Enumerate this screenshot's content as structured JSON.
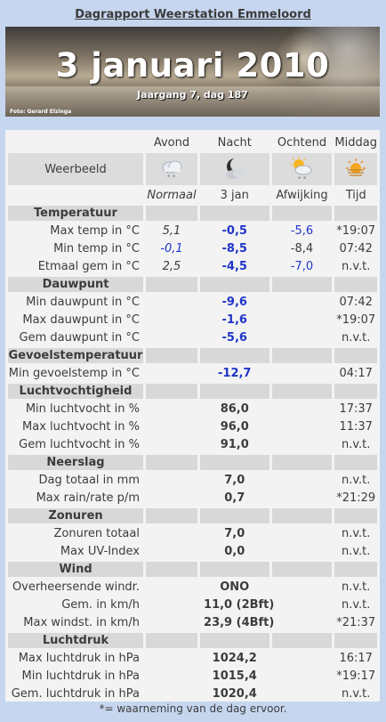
{
  "page": {
    "title": "Dagrapport Weerstation Emmeloord",
    "footnote": "*= waarneming van de dag ervoor."
  },
  "banner": {
    "date": "3 januari 2010",
    "subtitle": "Jaargang 7, dag 187",
    "photo_credit": "Foto: Gerard Elzinga"
  },
  "columns": {
    "c1": "Avond",
    "c2": "Nacht",
    "c3": "Ochtend",
    "c4": "Middag"
  },
  "icons_row": {
    "label": "Weerbeeld",
    "icons": [
      "cloud-snow-icon",
      "moon-cloud-icon",
      "sun-cloud-snow-icon",
      "sun-haze-icon"
    ]
  },
  "subheader": {
    "c1": "Normaal",
    "c2": "3 jan",
    "c3": "Afwijking",
    "c4": "Tijd"
  },
  "colors": {
    "value_blue": "#1f36c8",
    "section_bg": "#d8d8d8",
    "page_bg": "#c6d6ef"
  },
  "sections": {
    "temp": {
      "title": "Temperatuur",
      "rows": [
        {
          "label": "Max temp in °C",
          "normaal": "5,1",
          "value": "-0,5",
          "afwijking": "-5,6",
          "tijd": "*19:07"
        },
        {
          "label": "Min temp in °C",
          "normaal": "-0,1",
          "value": "-8,5",
          "afwijking": "-8,4",
          "tijd": "07:42"
        },
        {
          "label": "Etmaal gem in °C",
          "normaal": "2,5",
          "value": "-4,5",
          "afwijking": "-7,0",
          "tijd": "n.v.t."
        }
      ]
    },
    "dew": {
      "title": "Dauwpunt",
      "rows": [
        {
          "label": "Min dauwpunt in °C",
          "value": "-9,6",
          "tijd": "07:42"
        },
        {
          "label": "Max dauwpunt in °C",
          "value": "-1,6",
          "tijd": "*19:07"
        },
        {
          "label": "Gem dauwpunt in °C",
          "value": "-5,6",
          "tijd": "n.v.t."
        }
      ]
    },
    "feel": {
      "title": "Gevoelstemperatuur",
      "rows": [
        {
          "label": "Min gevoelstemp in °C",
          "value": "-12,7",
          "tijd": "04:17"
        }
      ]
    },
    "hum": {
      "title": "Luchtvochtigheid",
      "rows": [
        {
          "label": "Min luchtvocht in %",
          "value": "86,0",
          "tijd": "17:37"
        },
        {
          "label": "Max luchtvocht in %",
          "value": "96,0",
          "tijd": "11:37"
        },
        {
          "label": "Gem luchtvocht in %",
          "value": "91,0",
          "tijd": "n.v.t."
        }
      ]
    },
    "rain": {
      "title": "Neerslag",
      "rows": [
        {
          "label": "Dag totaal in mm",
          "value": "7,0",
          "tijd": "n.v.t."
        },
        {
          "label": "Max rain/rate p/m",
          "value": "0,7",
          "tijd": "*21:29"
        }
      ]
    },
    "sun": {
      "title": "Zonuren",
      "rows": [
        {
          "label": "Zonuren totaal",
          "value": "7,0",
          "tijd": "n.v.t."
        },
        {
          "label": "Max UV-Index",
          "value": "0,0",
          "tijd": "n.v.t."
        }
      ]
    },
    "wind": {
      "title": "Wind",
      "rows": [
        {
          "label": "Overheersende windr.",
          "value": "ONO",
          "tijd": "n.v.t."
        },
        {
          "label": "Gem. in km/h",
          "value": "11,0 (2Bft)",
          "tijd": "n.v.t."
        },
        {
          "label": "Max windst. in km/h",
          "value": "23,9 (4Bft)",
          "tijd": "*21:37"
        }
      ]
    },
    "press": {
      "title": "Luchtdruk",
      "rows": [
        {
          "label": "Max luchtdruk in hPa",
          "value": "1024,2",
          "tijd": "16:17"
        },
        {
          "label": "Min luchtdruk in hPa",
          "value": "1015,4",
          "tijd": "*19:17"
        },
        {
          "label": "Gem. luchtdruk in hPa",
          "value": "1020,4",
          "tijd": "n.v.t."
        }
      ]
    }
  }
}
